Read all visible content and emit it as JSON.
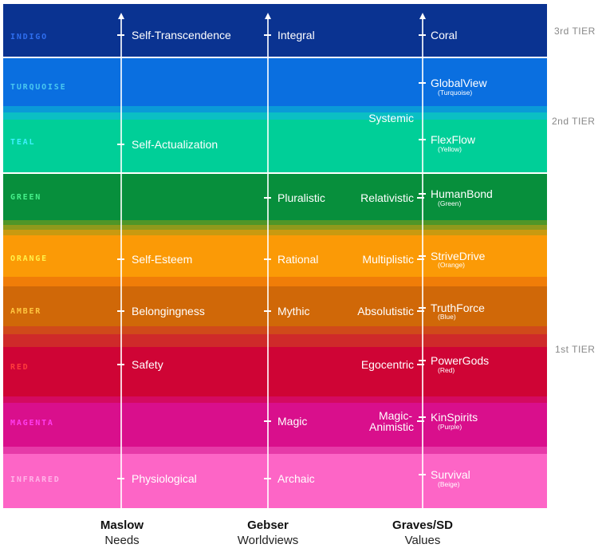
{
  "colors": {
    "indigo": "#0a3391",
    "turquoise": "#0a6fe0",
    "teal": "#00cf98",
    "green": "#078f3c",
    "orange": "#fb9a06",
    "amber": "#d06808",
    "red": "#cf0435",
    "magenta": "#d90f8c",
    "infrared": "#fd65c6"
  },
  "tiers": {
    "third": "3rd TIER",
    "second": "2nd TIER",
    "first": "1st TIER"
  },
  "bands": {
    "indigo": "INDIGO",
    "turquoise": "TURQUOISE",
    "teal": "TEAL",
    "green": "GREEN",
    "orange": "ORANGE",
    "amber": "AMBER",
    "red": "RED",
    "magenta": "MAGENTA",
    "infrared": "INFRARED"
  },
  "maslow": {
    "self_transcendence": "Self-Transcendence",
    "self_actualization": "Self-Actualization",
    "self_esteem": "Self-Esteem",
    "belongingness": "Belongingness",
    "safety": "Safety",
    "physiological": "Physiological"
  },
  "gebser": {
    "integral": "Integral",
    "pluralistic": "Pluralistic",
    "rational": "Rational",
    "mythic": "Mythic",
    "magic": "Magic",
    "archaic": "Archaic"
  },
  "kegan_like": {
    "systemic": "Systemic",
    "relativistic": "Relativistic",
    "multiplistic": "Multiplistic",
    "absolutistic": "Absolutistic",
    "egocentric": "Egocentric",
    "magic_animistic_1": "Magic-",
    "magic_animistic_2": "Animistic"
  },
  "graves": {
    "coral": "Coral",
    "globalview": "GlobalView",
    "globalview_sub": "(Turquoise)",
    "flexflow": "FlexFlow",
    "flexflow_sub": "(Yellow)",
    "humanbond": "HumanBond",
    "humanbond_sub": "(Green)",
    "strivedrive": "StriveDrive",
    "strivedrive_sub": "(Orange)",
    "truthforce": "TruthForce",
    "truthforce_sub": "(Blue)",
    "powergods": "PowerGods",
    "powergods_sub": "(Red)",
    "kinspirits": "KinSpirits",
    "kinspirits_sub": "(Purple)",
    "survival": "Survival",
    "survival_sub": "(Beige)"
  },
  "columns": {
    "maslow_title": "Maslow",
    "maslow_sub": "Needs",
    "gebser_title": "Gebser",
    "gebser_sub": "Worldviews",
    "graves_title": "Graves/SD",
    "graves_sub": "Values"
  }
}
